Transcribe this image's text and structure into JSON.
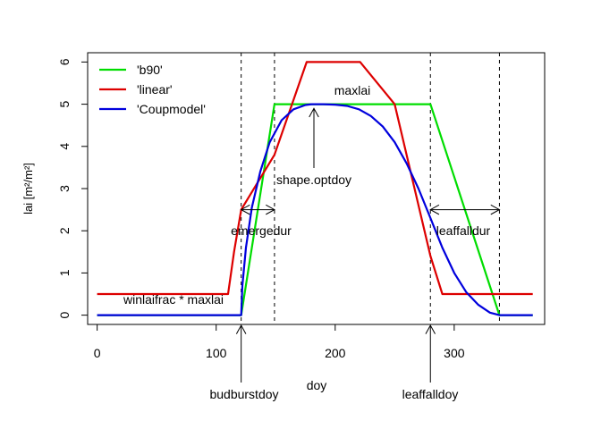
{
  "chart_data": {
    "type": "line",
    "xlabel": "doy",
    "ylabel": "lai [m²/m²]",
    "xlim": [
      -8,
      376
    ],
    "ylim": [
      -0.22,
      6.22
    ],
    "xticks": [
      0,
      100,
      200,
      300
    ],
    "yticks": [
      0,
      1,
      2,
      3,
      4,
      5,
      6
    ],
    "grid": false,
    "legend": {
      "position": "top-left",
      "boxed": false
    },
    "series": [
      {
        "name": "'b90'",
        "color": "#00dd00",
        "x": [
          0,
          121,
          149,
          280,
          338,
          366
        ],
        "y": [
          0,
          0,
          5,
          5,
          0,
          0
        ]
      },
      {
        "name": "'linear'",
        "color": "#dd0000",
        "x": [
          0,
          110,
          115,
          121,
          149,
          176,
          221,
          250,
          280,
          290,
          366
        ],
        "y": [
          0.5,
          0.5,
          1.5,
          2.5,
          3.8,
          6,
          6,
          5,
          1.4,
          0.5,
          0.5
        ]
      },
      {
        "name": "'Coupmodel'",
        "color": "#0000dd",
        "x": [
          0,
          121,
          122,
          125,
          130,
          137,
          145,
          155,
          165,
          175,
          180,
          190,
          200,
          210,
          220,
          230,
          240,
          250,
          260,
          270,
          280,
          290,
          300,
          310,
          320,
          330,
          338,
          366
        ],
        "y": [
          0,
          0,
          0.7,
          1.6,
          2.55,
          3.4,
          4.1,
          4.62,
          4.88,
          4.98,
          5,
          5,
          4.99,
          4.96,
          4.88,
          4.72,
          4.47,
          4.1,
          3.6,
          3.0,
          2.3,
          1.6,
          1.0,
          0.55,
          0.25,
          0.06,
          0,
          0
        ]
      }
    ],
    "vlines": [
      121,
      149,
      280,
      338
    ],
    "annotations": {
      "maxlai": "maxlai",
      "shape_optdoy": "shape.optdoy",
      "emergedur": "emergedur",
      "leaffalldur": "leaffalldur",
      "winlaifrac": "winlaifrac * maxlai",
      "budburstdoy": "budburstdoy",
      "leaffalldoy": "leaffalldoy"
    }
  }
}
